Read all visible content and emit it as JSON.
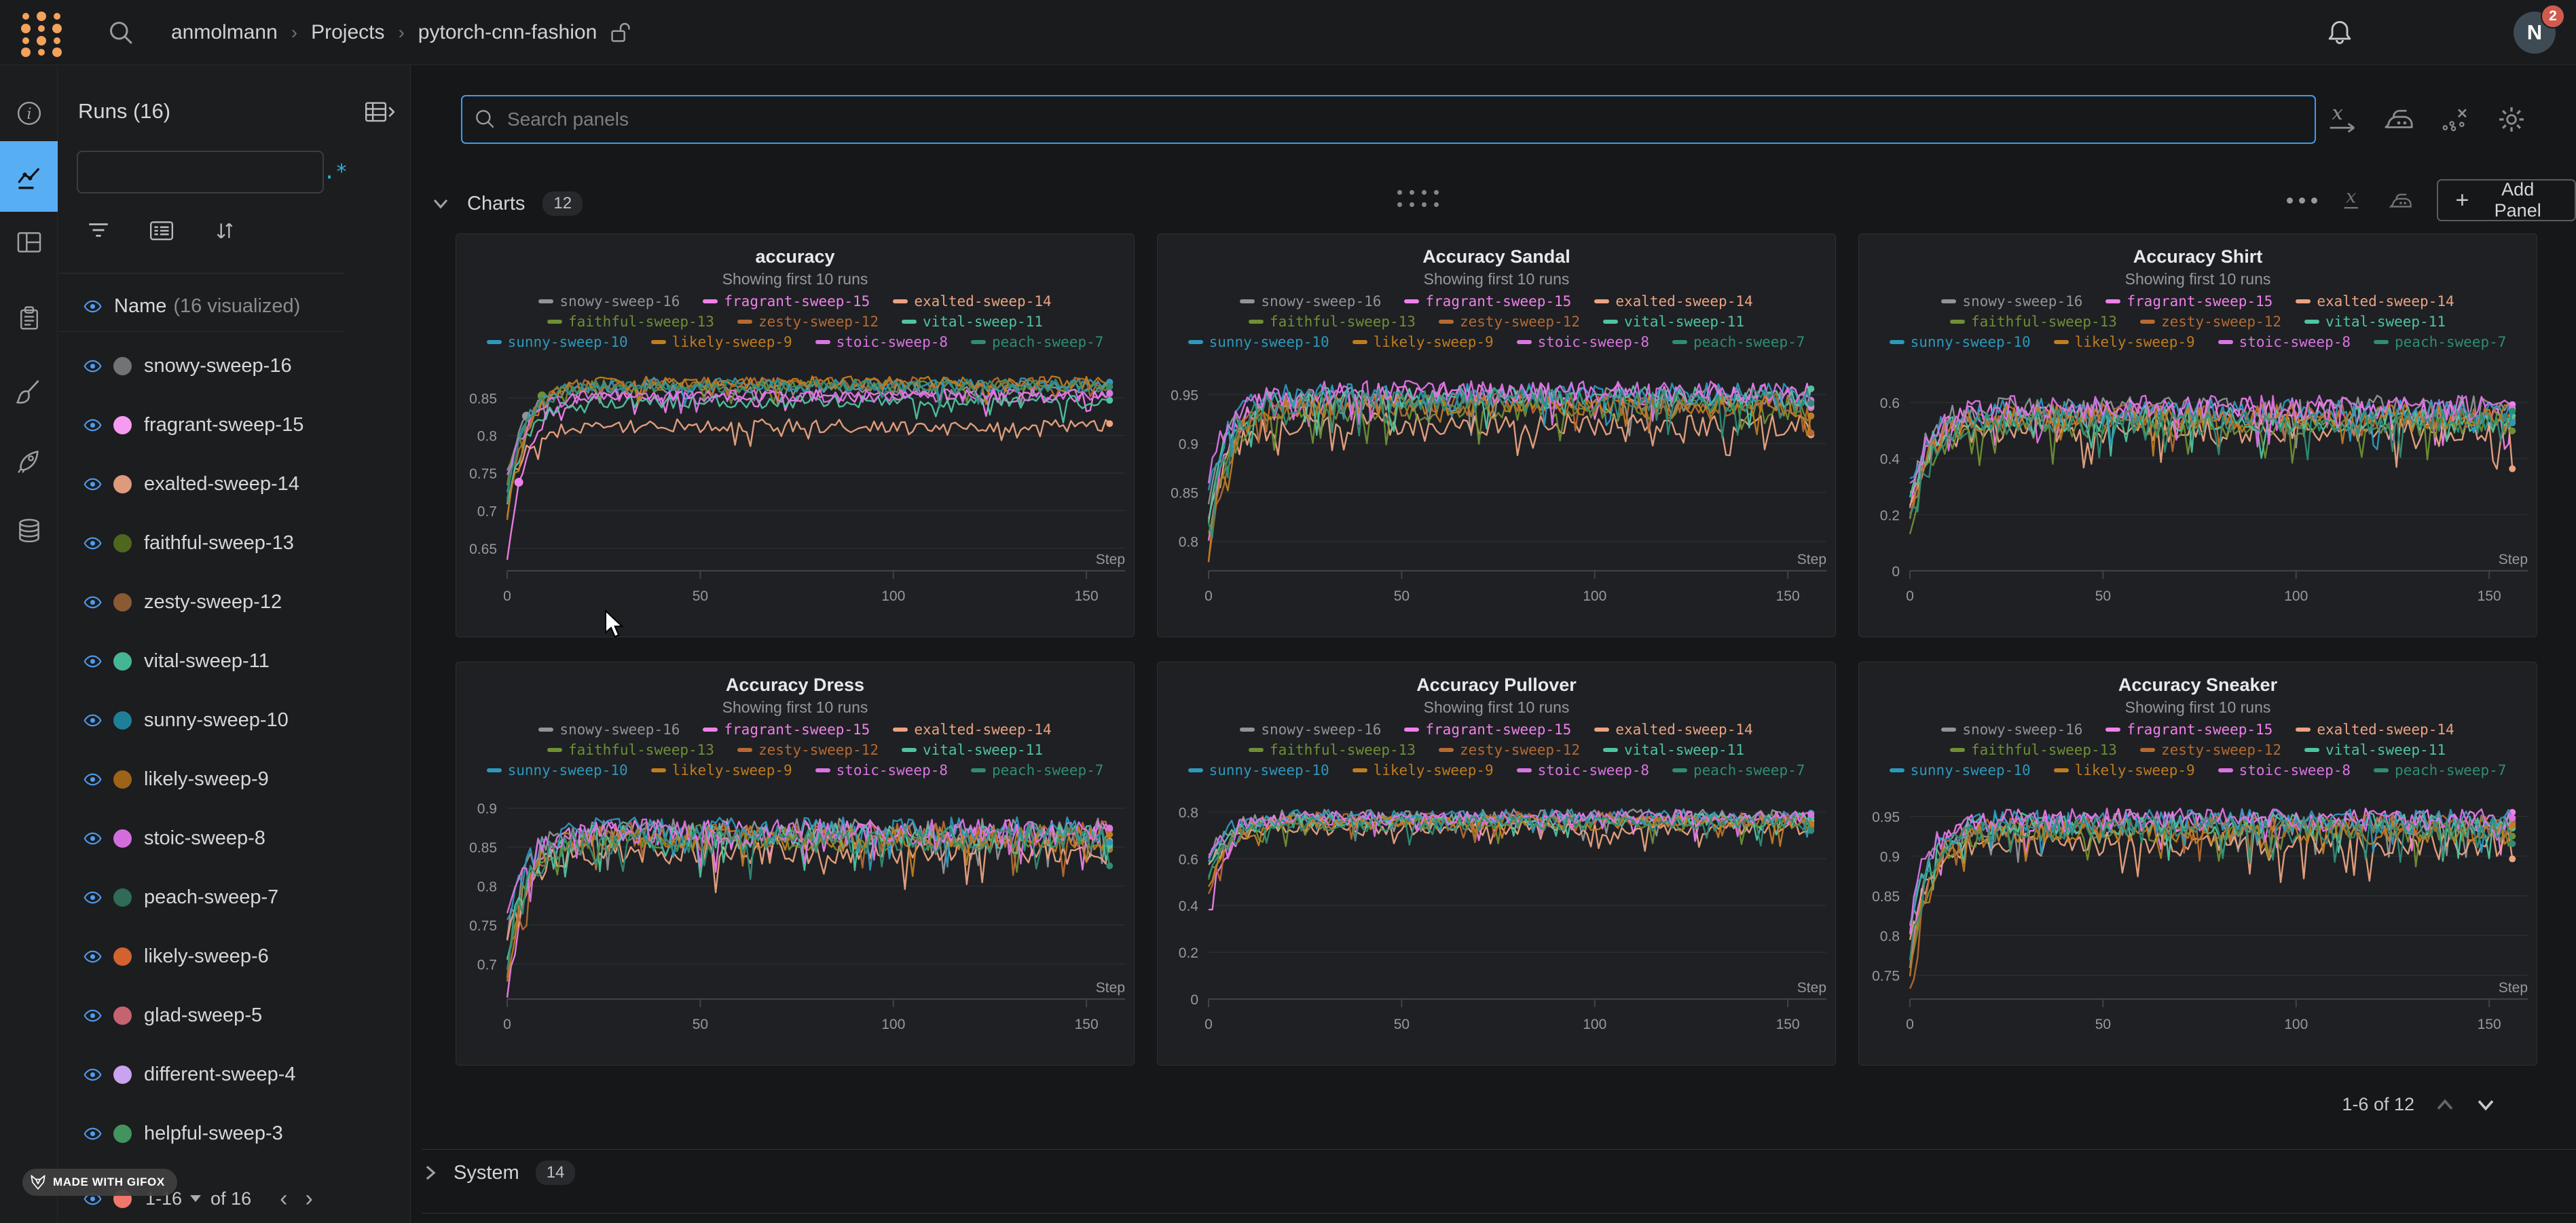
{
  "header": {
    "breadcrumb": [
      "anmolmann",
      "Projects",
      "pytorch-cnn-fashion"
    ],
    "notification_count": "2",
    "avatar_initial": "N"
  },
  "sidebar": {
    "title": "Runs (16)",
    "search_placeholder": "",
    "regex_icon": ".*",
    "name_header": "Name",
    "visualized_note": "(16 visualized)",
    "runs": [
      {
        "name": "snowy-sweep-16",
        "color": "#717477"
      },
      {
        "name": "fragrant-sweep-15",
        "color": "#f79af2"
      },
      {
        "name": "exalted-sweep-14",
        "color": "#de9b7c"
      },
      {
        "name": "faithful-sweep-13",
        "color": "#4f661f"
      },
      {
        "name": "zesty-sweep-12",
        "color": "#8a5a33"
      },
      {
        "name": "vital-sweep-11",
        "color": "#46b594"
      },
      {
        "name": "sunny-sweep-10",
        "color": "#1f7e98"
      },
      {
        "name": "likely-sweep-9",
        "color": "#9d6318"
      },
      {
        "name": "stoic-sweep-8",
        "color": "#d16edb"
      },
      {
        "name": "peach-sweep-7",
        "color": "#2f6b56"
      },
      {
        "name": "likely-sweep-6",
        "color": "#d2622f"
      },
      {
        "name": "glad-sweep-5",
        "color": "#c66371"
      },
      {
        "name": "different-sweep-4",
        "color": "#c9a2f0"
      },
      {
        "name": "helpful-sweep-3",
        "color": "#42945f"
      }
    ],
    "pagination": {
      "range": "1-16",
      "of": "of 16"
    }
  },
  "main": {
    "search_placeholder": "Search panels",
    "charts_section": {
      "label": "Charts",
      "count": "12",
      "add_panel_label": "Add Panel"
    },
    "charts_pagination": "1-6 of 12",
    "system_section": {
      "label": "System",
      "count": "14"
    }
  },
  "gifox_label": "MADE WITH GIFOX",
  "chart_data": {
    "type": "line",
    "xlabel": "Step",
    "x_ticks": [
      0,
      50,
      100,
      150
    ],
    "x_range": [
      0,
      160
    ],
    "subtitle": "Showing first 10 runs",
    "legend_rows": [
      3,
      3,
      4
    ],
    "palette": {
      "snowy-sweep-16": "#909597",
      "fragrant-sweep-15": "#f080ea",
      "exalted-sweep-14": "#eba381",
      "faithful-sweep-13": "#6f8f35",
      "zesty-sweep-12": "#b66a32",
      "vital-sweep-11": "#4fc3a1",
      "sunny-sweep-10": "#2e98bd",
      "likely-sweep-9": "#c07c21",
      "stoic-sweep-8": "#db74e3",
      "peach-sweep-7": "#2f8d75"
    },
    "charts": [
      {
        "title": "accuracy",
        "y_ticks": [
          0.65,
          0.7,
          0.75,
          0.8,
          0.85
        ],
        "y_range": [
          0.62,
          0.9
        ],
        "noise": 0.009,
        "dots": [
          {
            "s": 0,
            "i": 5
          },
          {
            "s": 1,
            "i": 3
          },
          {
            "s": 3,
            "i": 9
          }
        ],
        "series": [
          {
            "name": "snowy-sweep-16",
            "start": 0.75,
            "plateau": 0.862
          },
          {
            "name": "fragrant-sweep-15",
            "start": 0.63,
            "plateau": 0.852
          },
          {
            "name": "exalted-sweep-14",
            "start": 0.72,
            "plateau": 0.813
          },
          {
            "name": "faithful-sweep-13",
            "start": 0.74,
            "plateau": 0.866
          },
          {
            "name": "zesty-sweep-12",
            "start": 0.7,
            "plateau": 0.869
          },
          {
            "name": "vital-sweep-11",
            "start": 0.71,
            "plateau": 0.845
          },
          {
            "name": "sunny-sweep-10",
            "start": 0.73,
            "plateau": 0.868
          },
          {
            "name": "likely-sweep-9",
            "start": 0.69,
            "plateau": 0.87
          },
          {
            "name": "stoic-sweep-8",
            "start": 0.74,
            "plateau": 0.853
          },
          {
            "name": "peach-sweep-7",
            "start": 0.72,
            "plateau": 0.866
          }
        ]
      },
      {
        "title": "Accuracy Sandal",
        "y_ticks": [
          0.8,
          0.85,
          0.9,
          0.95
        ],
        "y_range": [
          0.77,
          0.985
        ],
        "noise": 0.012,
        "series": [
          {
            "name": "snowy-sweep-16",
            "start": 0.84,
            "plateau": 0.945
          },
          {
            "name": "fragrant-sweep-15",
            "start": 0.8,
            "plateau": 0.95
          },
          {
            "name": "exalted-sweep-14",
            "start": 0.82,
            "plateau": 0.92
          },
          {
            "name": "faithful-sweep-13",
            "start": 0.8,
            "plateau": 0.935
          },
          {
            "name": "zesty-sweep-12",
            "start": 0.78,
            "plateau": 0.94
          },
          {
            "name": "vital-sweep-11",
            "start": 0.83,
            "plateau": 0.947
          },
          {
            "name": "sunny-sweep-10",
            "start": 0.85,
            "plateau": 0.95
          },
          {
            "name": "likely-sweep-9",
            "start": 0.79,
            "plateau": 0.938
          },
          {
            "name": "stoic-sweep-8",
            "start": 0.86,
            "plateau": 0.952
          },
          {
            "name": "peach-sweep-7",
            "start": 0.81,
            "plateau": 0.944
          }
        ]
      },
      {
        "title": "Accuracy Shirt",
        "y_ticks": [
          0,
          0.2,
          0.4,
          0.6
        ],
        "y_range": [
          0,
          0.75
        ],
        "noise": 0.045,
        "series": [
          {
            "name": "snowy-sweep-16",
            "start": 0.28,
            "plateau": 0.58
          },
          {
            "name": "fragrant-sweep-15",
            "start": 0.22,
            "plateau": 0.57
          },
          {
            "name": "exalted-sweep-14",
            "start": 0.25,
            "plateau": 0.5
          },
          {
            "name": "faithful-sweep-13",
            "start": 0.15,
            "plateau": 0.52
          },
          {
            "name": "zesty-sweep-12",
            "start": 0.18,
            "plateau": 0.55
          },
          {
            "name": "vital-sweep-11",
            "start": 0.26,
            "plateau": 0.54
          },
          {
            "name": "sunny-sweep-10",
            "start": 0.3,
            "plateau": 0.57
          },
          {
            "name": "likely-sweep-9",
            "start": 0.16,
            "plateau": 0.55
          },
          {
            "name": "stoic-sweep-8",
            "start": 0.29,
            "plateau": 0.58
          },
          {
            "name": "peach-sweep-7",
            "start": 0.2,
            "plateau": 0.53
          }
        ]
      },
      {
        "title": "Accuracy Dress",
        "y_ticks": [
          0.7,
          0.75,
          0.8,
          0.85,
          0.9
        ],
        "y_range": [
          0.655,
          0.925
        ],
        "noise": 0.017,
        "series": [
          {
            "name": "snowy-sweep-16",
            "start": 0.73,
            "plateau": 0.87
          },
          {
            "name": "fragrant-sweep-15",
            "start": 0.66,
            "plateau": 0.868
          },
          {
            "name": "exalted-sweep-14",
            "start": 0.72,
            "plateau": 0.845
          },
          {
            "name": "faithful-sweep-13",
            "start": 0.7,
            "plateau": 0.862
          },
          {
            "name": "zesty-sweep-12",
            "start": 0.68,
            "plateau": 0.866
          },
          {
            "name": "vital-sweep-11",
            "start": 0.71,
            "plateau": 0.864
          },
          {
            "name": "sunny-sweep-10",
            "start": 0.74,
            "plateau": 0.872
          },
          {
            "name": "likely-sweep-9",
            "start": 0.69,
            "plateau": 0.86
          },
          {
            "name": "stoic-sweep-8",
            "start": 0.75,
            "plateau": 0.869
          },
          {
            "name": "peach-sweep-7",
            "start": 0.7,
            "plateau": 0.858
          }
        ]
      },
      {
        "title": "Accuracy Pullover",
        "y_ticks": [
          0,
          0.2,
          0.4,
          0.6,
          0.8
        ],
        "y_range": [
          0,
          0.9
        ],
        "noise": 0.032,
        "series": [
          {
            "name": "snowy-sweep-16",
            "start": 0.6,
            "plateau": 0.78
          },
          {
            "name": "fragrant-sweep-15",
            "start": 0.38,
            "plateau": 0.77
          },
          {
            "name": "exalted-sweep-14",
            "start": 0.55,
            "plateau": 0.73
          },
          {
            "name": "faithful-sweep-13",
            "start": 0.5,
            "plateau": 0.76
          },
          {
            "name": "zesty-sweep-12",
            "start": 0.45,
            "plateau": 0.77
          },
          {
            "name": "vital-sweep-11",
            "start": 0.56,
            "plateau": 0.765
          },
          {
            "name": "sunny-sweep-10",
            "start": 0.62,
            "plateau": 0.78
          },
          {
            "name": "likely-sweep-9",
            "start": 0.48,
            "plateau": 0.755
          },
          {
            "name": "stoic-sweep-8",
            "start": 0.58,
            "plateau": 0.775
          },
          {
            "name": "peach-sweep-7",
            "start": 0.52,
            "plateau": 0.75
          }
        ]
      },
      {
        "title": "Accuracy Sneaker",
        "y_ticks": [
          0.75,
          0.8,
          0.85,
          0.9,
          0.95
        ],
        "y_range": [
          0.72,
          0.985
        ],
        "noise": 0.015,
        "series": [
          {
            "name": "snowy-sweep-16",
            "start": 0.8,
            "plateau": 0.94
          },
          {
            "name": "fragrant-sweep-15",
            "start": 0.76,
            "plateau": 0.945
          },
          {
            "name": "exalted-sweep-14",
            "start": 0.79,
            "plateau": 0.915
          },
          {
            "name": "faithful-sweep-13",
            "start": 0.75,
            "plateau": 0.932
          },
          {
            "name": "zesty-sweep-12",
            "start": 0.74,
            "plateau": 0.938
          },
          {
            "name": "vital-sweep-11",
            "start": 0.8,
            "plateau": 0.94
          },
          {
            "name": "sunny-sweep-10",
            "start": 0.82,
            "plateau": 0.944
          },
          {
            "name": "likely-sweep-9",
            "start": 0.76,
            "plateau": 0.93
          },
          {
            "name": "stoic-sweep-8",
            "start": 0.83,
            "plateau": 0.946
          },
          {
            "name": "peach-sweep-7",
            "start": 0.78,
            "plateau": 0.935
          }
        ]
      }
    ]
  }
}
